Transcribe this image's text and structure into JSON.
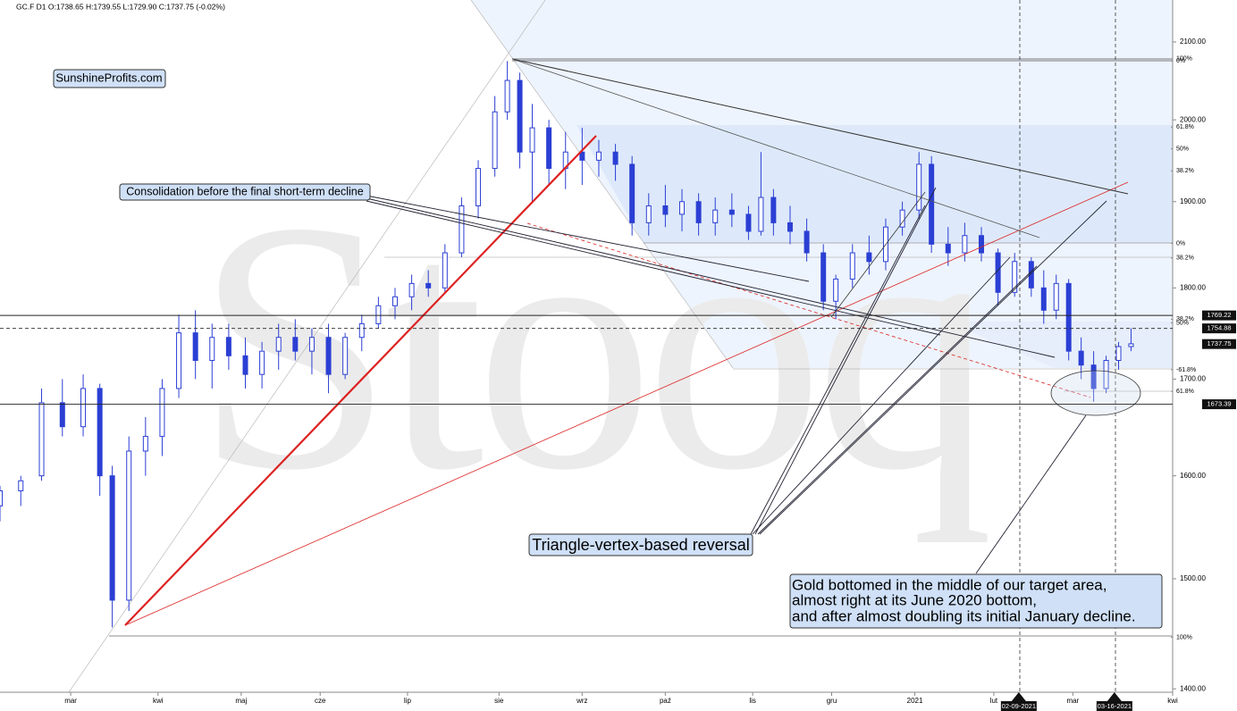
{
  "chart_data": {
    "type": "candlestick",
    "title": "GC.F  D1  O:1738.65  H:1739.55  L:1729.90  C:1737.75  (-0.02%)",
    "watermark": "Stooq",
    "color": "#2b3fd4",
    "log_scale": true,
    "ylim": [
      1397,
      2156
    ],
    "yticks": [
      {
        "value": 2100,
        "label": "2100.00"
      },
      {
        "value": 2000,
        "label": "2000.00"
      },
      {
        "value": 1900,
        "label": "1900.00"
      },
      {
        "value": 1800,
        "label": "1800.00"
      },
      {
        "value": 1700,
        "label": "1700.00"
      },
      {
        "value": 1600,
        "label": "1600.00"
      },
      {
        "value": 1500,
        "label": "1500.00"
      },
      {
        "value": 1400,
        "label": "1400.00"
      }
    ],
    "xlim": [
      0,
      282
    ],
    "xticks": [
      {
        "value": 17,
        "label": "mar"
      },
      {
        "value": 38,
        "label": "kwi"
      },
      {
        "value": 58,
        "label": "maj"
      },
      {
        "value": 77,
        "label": "cze"
      },
      {
        "value": 98,
        "label": "lip"
      },
      {
        "value": 120,
        "label": "sie"
      },
      {
        "value": 140,
        "label": "wrz"
      },
      {
        "value": 160,
        "label": "paź"
      },
      {
        "value": 181,
        "label": "lis"
      },
      {
        "value": 200,
        "label": "gru"
      },
      {
        "value": 220,
        "label": "2021"
      },
      {
        "value": 239,
        "label": "lut"
      },
      {
        "value": 258,
        "label": "mar"
      },
      {
        "value": 282,
        "label": "kwi"
      }
    ],
    "x_markers": [
      {
        "value": 245,
        "label": "02-09-2021"
      },
      {
        "value": 268,
        "label": "03-16-2021"
      }
    ],
    "x": [
      0,
      5,
      10,
      15,
      20,
      24,
      27,
      31,
      35,
      39,
      43,
      47,
      51,
      55,
      59,
      63,
      67,
      71,
      75,
      79,
      83,
      87,
      91,
      95,
      99,
      103,
      107,
      111,
      115,
      119,
      122,
      125,
      128,
      132,
      136,
      140,
      144,
      148,
      152,
      156,
      160,
      164,
      168,
      172,
      176,
      180,
      183,
      186,
      190,
      194,
      198,
      201,
      205,
      209,
      213,
      217,
      221,
      224,
      228,
      232,
      236,
      240,
      244,
      248,
      251,
      254,
      257,
      260,
      263,
      266,
      269,
      272
    ],
    "open": [
      1570,
      1585,
      1600,
      1675,
      1650,
      1690,
      1600,
      1480,
      1625,
      1640,
      1690,
      1750,
      1720,
      1745,
      1725,
      1705,
      1730,
      1745,
      1730,
      1745,
      1705,
      1745,
      1760,
      1780,
      1790,
      1805,
      1800,
      1840,
      1895,
      1940,
      2010,
      2050,
      1960,
      1990,
      1940,
      1960,
      1950,
      1960,
      1945,
      1875,
      1895,
      1885,
      1900,
      1875,
      1890,
      1885,
      1865,
      1905,
      1875,
      1865,
      1840,
      1785,
      1810,
      1840,
      1830,
      1870,
      1890,
      1945,
      1850,
      1840,
      1860,
      1840,
      1795,
      1830,
      1800,
      1775,
      1805,
      1730,
      1715,
      1690,
      1720,
      1735
    ],
    "high": [
      1590,
      1600,
      1690,
      1700,
      1705,
      1695,
      1610,
      1640,
      1660,
      1700,
      1770,
      1775,
      1760,
      1760,
      1745,
      1740,
      1760,
      1765,
      1755,
      1760,
      1750,
      1770,
      1790,
      1800,
      1815,
      1820,
      1850,
      1905,
      1950,
      2030,
      2075,
      2060,
      2020,
      2000,
      1985,
      1990,
      1975,
      1970,
      1955,
      1910,
      1920,
      1915,
      1910,
      1905,
      1910,
      1895,
      1960,
      1915,
      1895,
      1880,
      1850,
      1815,
      1850,
      1860,
      1880,
      1900,
      1960,
      1955,
      1870,
      1875,
      1870,
      1845,
      1840,
      1835,
      1820,
      1815,
      1810,
      1745,
      1730,
      1725,
      1740,
      1755
    ],
    "low": [
      1555,
      1570,
      1595,
      1640,
      1640,
      1580,
      1455,
      1470,
      1600,
      1620,
      1680,
      1700,
      1690,
      1710,
      1690,
      1690,
      1710,
      1720,
      1705,
      1685,
      1700,
      1730,
      1755,
      1765,
      1775,
      1790,
      1795,
      1835,
      1880,
      1930,
      2000,
      1940,
      1900,
      1920,
      1915,
      1920,
      1930,
      1925,
      1860,
      1860,
      1870,
      1865,
      1860,
      1860,
      1870,
      1855,
      1860,
      1860,
      1850,
      1830,
      1775,
      1765,
      1800,
      1815,
      1820,
      1860,
      1880,
      1840,
      1825,
      1830,
      1830,
      1780,
      1790,
      1790,
      1760,
      1765,
      1720,
      1700,
      1676,
      1685,
      1710,
      1730
    ],
    "close": [
      1585,
      1595,
      1675,
      1650,
      1690,
      1600,
      1480,
      1625,
      1640,
      1690,
      1750,
      1720,
      1745,
      1725,
      1705,
      1730,
      1745,
      1730,
      1745,
      1705,
      1745,
      1760,
      1780,
      1790,
      1805,
      1800,
      1840,
      1895,
      1940,
      2010,
      2050,
      1960,
      1990,
      1940,
      1960,
      1950,
      1960,
      1945,
      1875,
      1895,
      1885,
      1900,
      1875,
      1890,
      1885,
      1865,
      1905,
      1875,
      1865,
      1840,
      1785,
      1810,
      1840,
      1830,
      1870,
      1890,
      1945,
      1850,
      1840,
      1860,
      1840,
      1795,
      1830,
      1800,
      1775,
      1805,
      1730,
      1715,
      1690,
      1720,
      1735,
      1738
    ],
    "price_lines": [
      {
        "value": 1769.22,
        "style": "solid"
      },
      {
        "value": 1754.88,
        "style": "dashed"
      },
      {
        "value": 1737.75,
        "style": "none"
      },
      {
        "value": 1673.39,
        "style": "solid"
      }
    ],
    "levels": [
      {
        "value": 2078,
        "label": "100%"
      },
      {
        "value": 2075,
        "label": "0%"
      },
      {
        "value": 1991,
        "label": "61.8%"
      },
      {
        "value": 1964,
        "label": "50%"
      },
      {
        "value": 1937,
        "label": "38.2%"
      },
      {
        "value": 1851,
        "label": "0%"
      },
      {
        "value": 1834,
        "label": "38.2%"
      },
      {
        "value": 1765,
        "label": "38.2%"
      },
      {
        "value": 1761,
        "label": "50%"
      },
      {
        "value": 1710,
        "label": "-61.8%"
      },
      {
        "value": 1687,
        "label": "61.8%"
      },
      {
        "value": 1446,
        "label": "100%"
      }
    ],
    "annotations": {
      "brand": "SunshineProfits.com",
      "consolidation": "Consolidation before the final short-term decline",
      "triangle": "Triangle-vertex-based reversal",
      "gold": [
        "Gold bottomed in the middle of our target area,",
        "almost right at its June 2020 bottom,",
        "and after almost doubling its initial January decline."
      ]
    }
  }
}
